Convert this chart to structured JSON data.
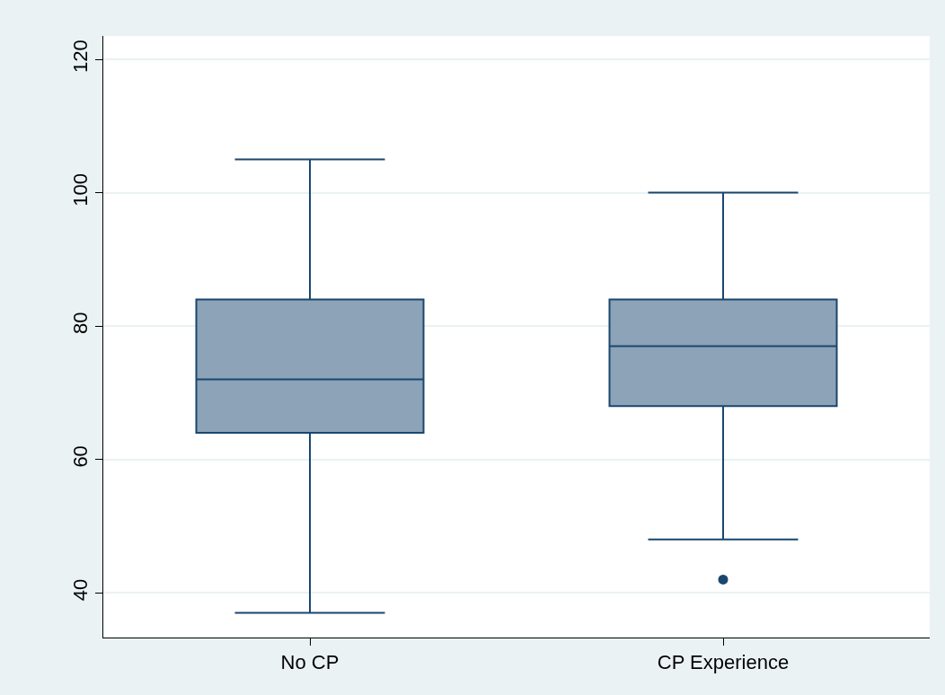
{
  "chart_data": {
    "type": "box",
    "categories": [
      "No CP",
      "CP Experience"
    ],
    "boxes": [
      {
        "low": 37,
        "q1": 64,
        "median": 72,
        "q3": 84,
        "high": 105
      },
      {
        "low": 48,
        "q1": 68,
        "median": 77,
        "q3": 84,
        "high": 100,
        "outliers": [
          42
        ]
      }
    ],
    "color": "#8ca3b8",
    "ylim": [
      33.3,
      123.5
    ],
    "yticks": [
      40,
      60,
      80,
      100,
      120
    ],
    "grid": "y",
    "legend": false,
    "marker": "circle"
  }
}
